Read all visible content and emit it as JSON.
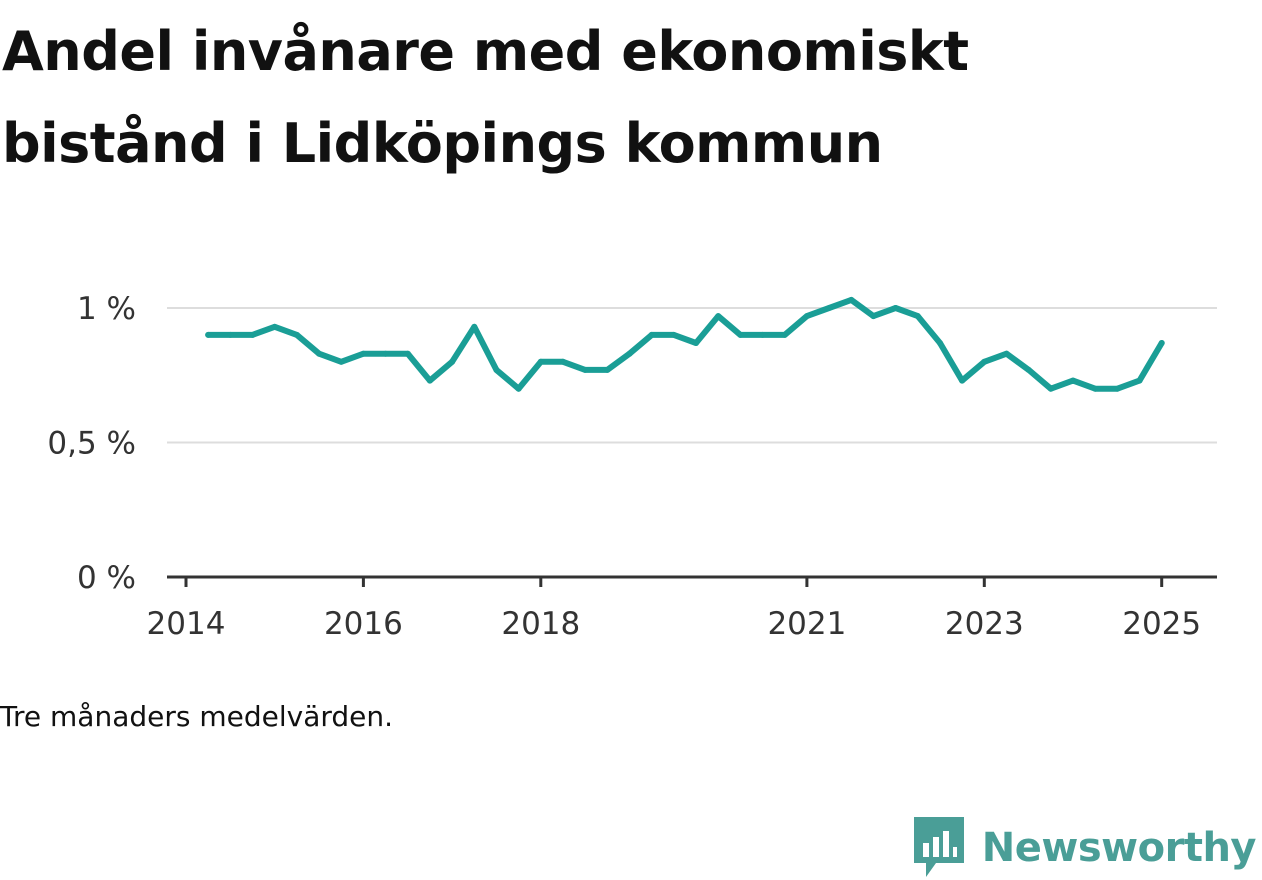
{
  "title_lines": [
    "Andel invånare med ekonomiskt",
    "bistånd i Lidköpings kommun"
  ],
  "note": "Tre månaders medelvärden.",
  "brand": {
    "name": "Newsworthy",
    "icon": "newsworthy-logo-icon",
    "color": "#4a9e97"
  },
  "chart_data": {
    "type": "line",
    "title": "Andel invånare med ekonomiskt bistånd i Lidköpings kommun",
    "xlabel": "",
    "ylabel": "",
    "ylim": [
      0,
      1.03
    ],
    "x_ticks": [
      {
        "label": "2014",
        "value": 2014.0
      },
      {
        "label": "2016",
        "value": 2016.0
      },
      {
        "label": "2018",
        "value": 2018.0
      },
      {
        "label": "2021",
        "value": 2021.0
      },
      {
        "label": "2023",
        "value": 2023.0
      },
      {
        "label": "2025",
        "value": 2025.0
      }
    ],
    "y_ticks": [
      {
        "label": "0 %",
        "value": 0
      },
      {
        "label": "0,5 %",
        "value": 0.5
      },
      {
        "label": "1 %",
        "value": 1.0
      }
    ],
    "grid": "horizontal",
    "color": "#1a9e96",
    "series": [
      {
        "x": [
          2014.25,
          2014.5,
          2014.75,
          2015.0,
          2015.25,
          2015.5,
          2015.75,
          2016.0,
          2016.25,
          2016.5,
          2016.75,
          2017.0,
          2017.25,
          2017.5,
          2017.75,
          2018.0,
          2018.25,
          2018.5,
          2018.75,
          2019.0,
          2019.25,
          2019.5,
          2019.75,
          2020.0,
          2020.25,
          2020.5,
          2020.75,
          2021.0,
          2021.25,
          2021.5,
          2021.75,
          2022.0,
          2022.25,
          2022.5,
          2022.75,
          2023.0,
          2023.25,
          2023.5,
          2023.75,
          2024.0,
          2024.25,
          2024.5,
          2024.75,
          2025.0
        ],
        "values": [
          0.9,
          0.9,
          0.9,
          0.93,
          0.9,
          0.83,
          0.8,
          0.83,
          0.83,
          0.83,
          0.73,
          0.8,
          0.93,
          0.77,
          0.7,
          0.8,
          0.8,
          0.77,
          0.77,
          0.83,
          0.9,
          0.9,
          0.87,
          0.97,
          0.9,
          0.9,
          0.9,
          0.97,
          1.0,
          1.03,
          0.97,
          1.0,
          0.97,
          0.87,
          0.73,
          0.8,
          0.83,
          0.77,
          0.7,
          0.73,
          0.7,
          0.7,
          0.73,
          0.87
        ]
      }
    ]
  }
}
